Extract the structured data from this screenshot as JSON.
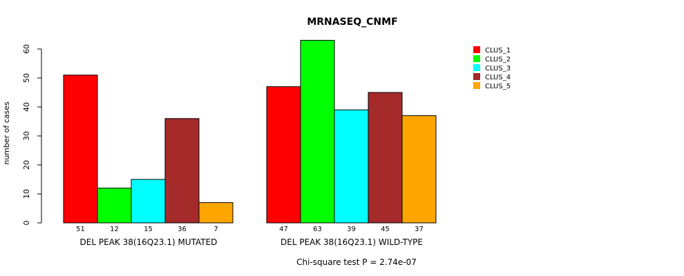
{
  "chart_data": {
    "type": "bar",
    "title": "MRNASEQ_CNMF",
    "ylabel": "number of cases",
    "ylim": [
      0,
      60
    ],
    "yticks": [
      0,
      10,
      20,
      30,
      40,
      50,
      60
    ],
    "groups": [
      {
        "name": "DEL PEAK 38(16Q23.1) MUTATED",
        "values": [
          51,
          12,
          15,
          36,
          7
        ]
      },
      {
        "name": "DEL PEAK 38(16Q23.1) WILD-TYPE",
        "values": [
          47,
          63,
          39,
          45,
          37
        ]
      }
    ],
    "series": [
      {
        "name": "CLUS_1",
        "color": "#ff0000"
      },
      {
        "name": "CLUS_2",
        "color": "#00ff00"
      },
      {
        "name": "CLUS_3",
        "color": "#00ffff"
      },
      {
        "name": "CLUS_4",
        "color": "#a52a2a"
      },
      {
        "name": "CLUS_5",
        "color": "#ffa500"
      }
    ],
    "legend_position": "top-right",
    "footnote": "Chi-square test P = 2.74e-07"
  }
}
